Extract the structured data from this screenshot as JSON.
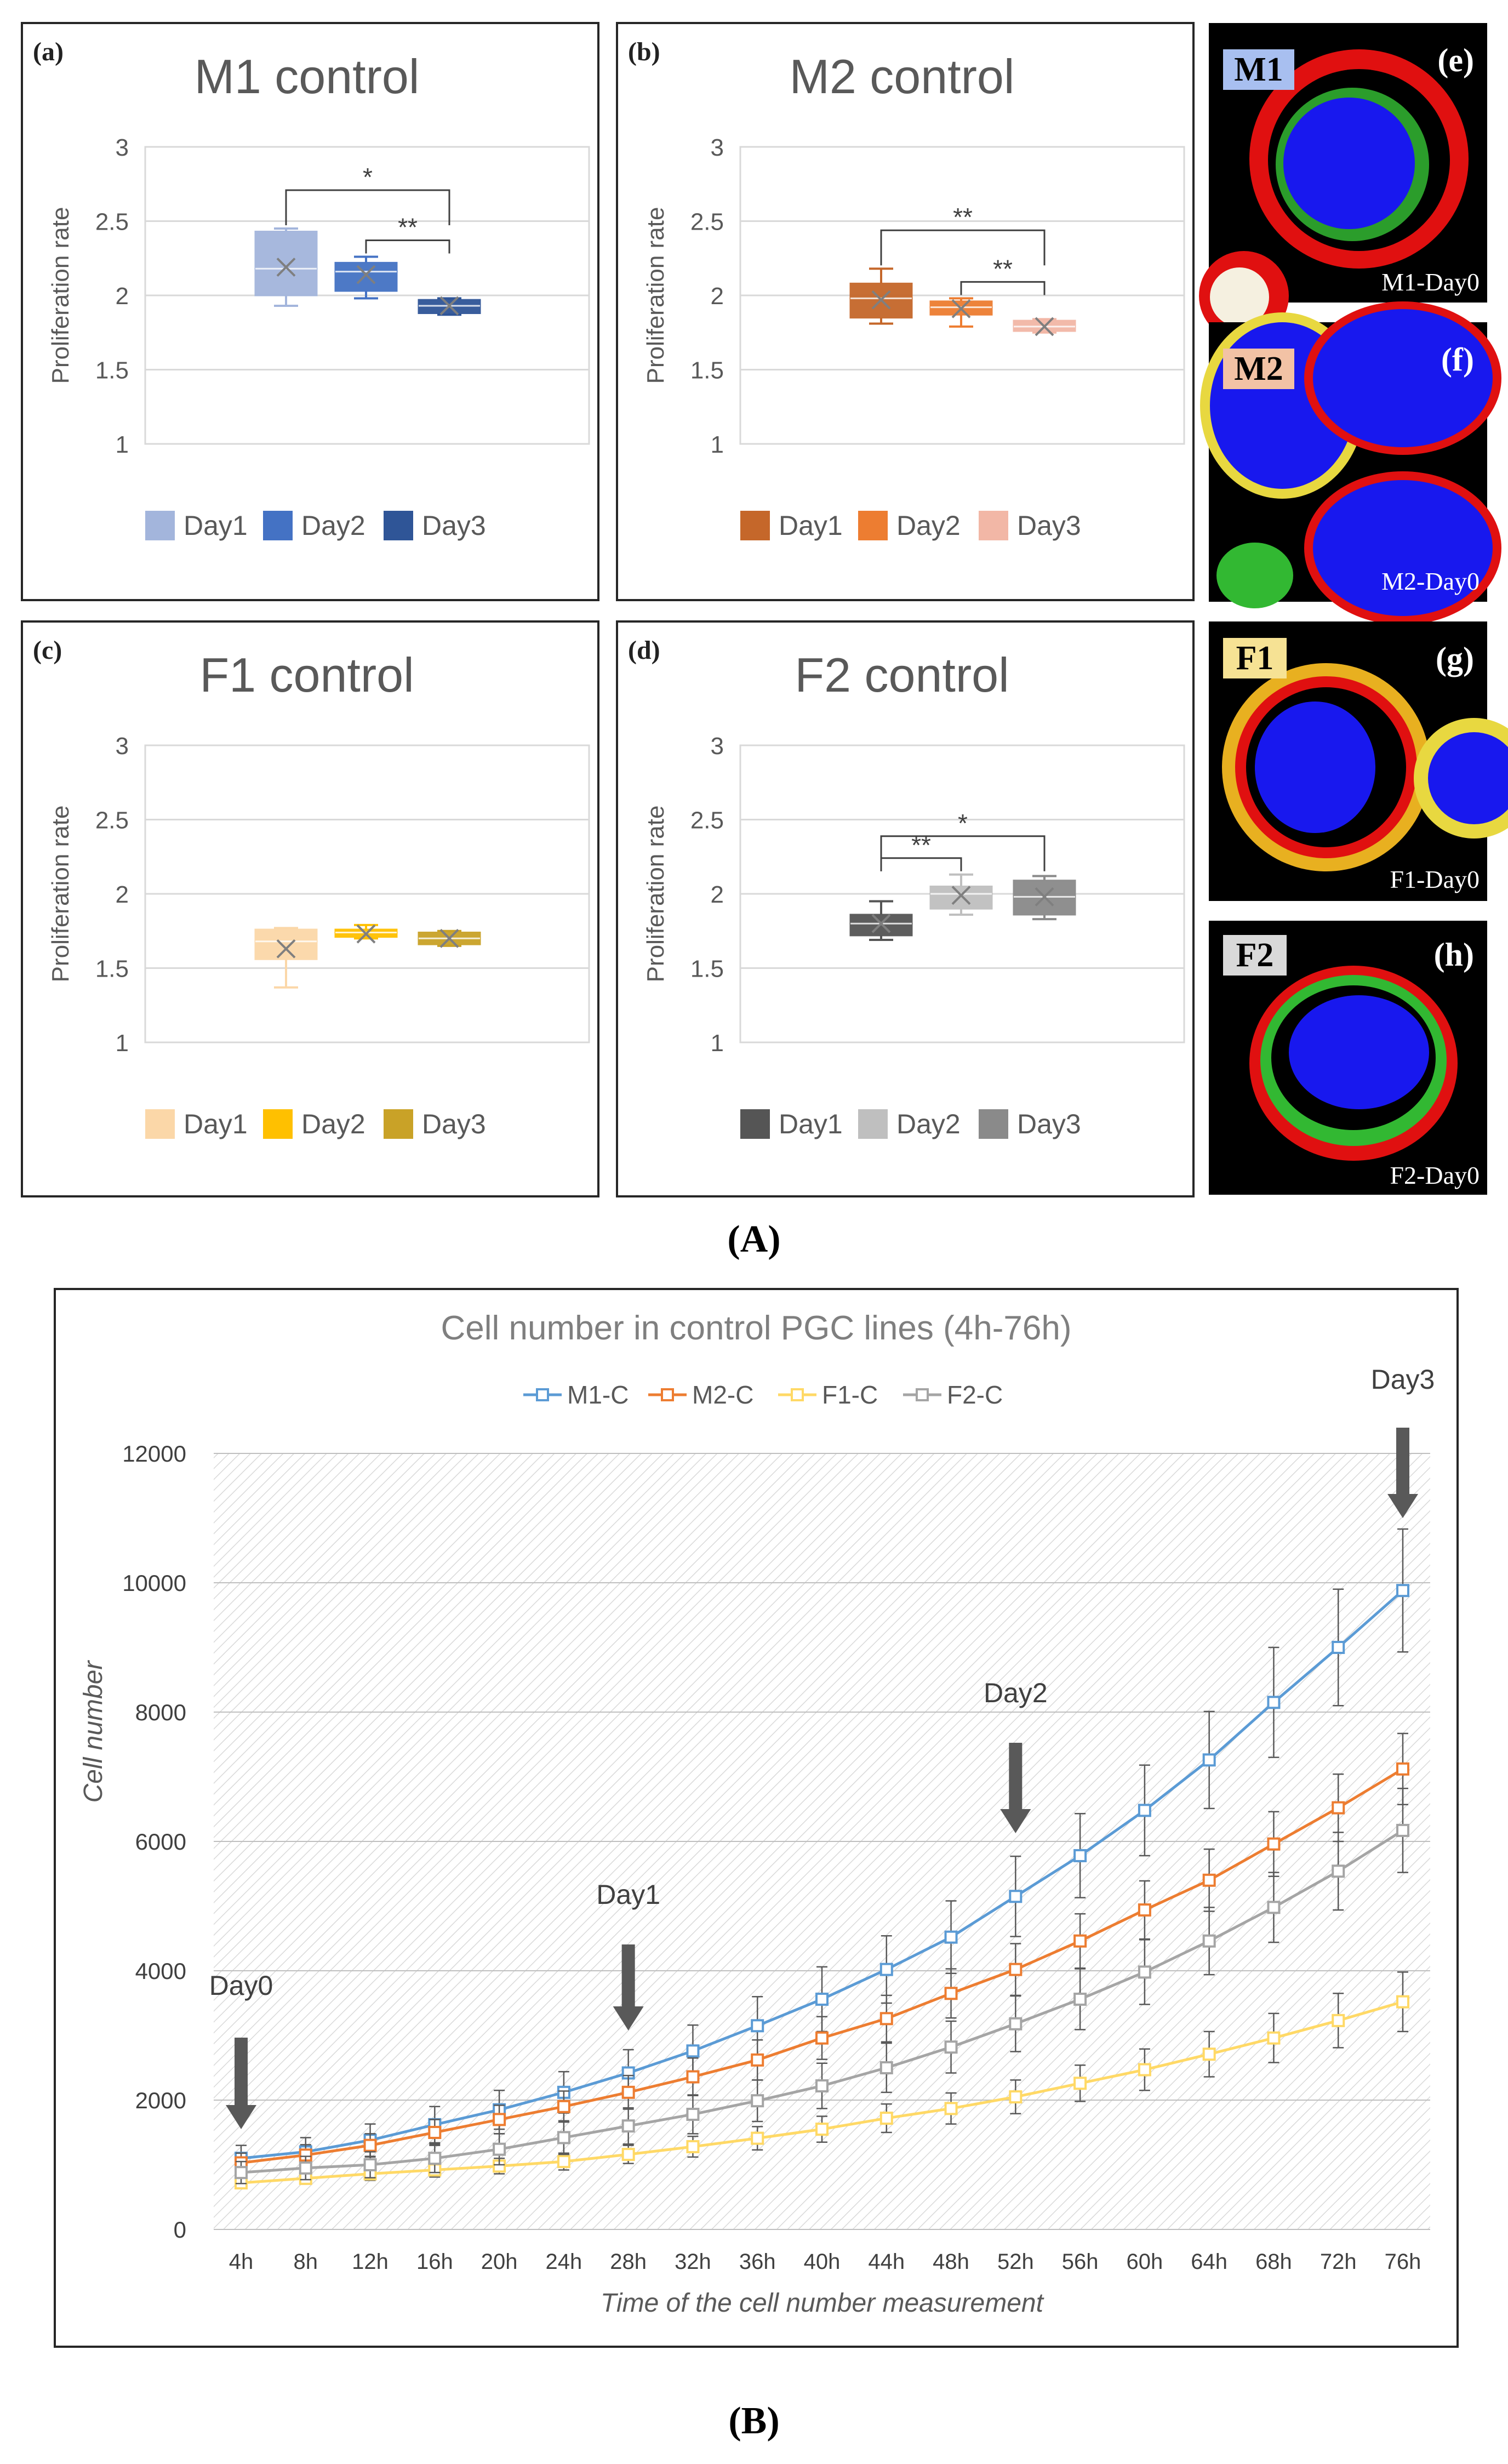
{
  "figure": {
    "part_a_label": "(A)",
    "part_b_label": "(B)"
  },
  "colors": {
    "m1": [
      "#a3b5dc",
      "#4472c4",
      "#2f5597"
    ],
    "m2": [
      "#c5672a",
      "#ed7d31",
      "#f2b7a6"
    ],
    "f1": [
      "#fbd7a8",
      "#ffc000",
      "#c9a227"
    ],
    "f2": [
      "#555555",
      "#bfbfbf",
      "#8a8a8a"
    ],
    "line_m1": "#5b9bd5",
    "line_m2": "#ed7d31",
    "line_f1": "#ffd966",
    "line_f2": "#a5a5a5",
    "arrow": "#595959"
  },
  "micrographs": [
    {
      "tag": "M1",
      "letter": "(e)",
      "caption": "M1-Day0"
    },
    {
      "tag": "M2",
      "letter": "(f)",
      "caption": "M2-Day0"
    },
    {
      "tag": "F1",
      "letter": "(g)",
      "caption": "F1-Day0"
    },
    {
      "tag": "F2",
      "letter": "(h)",
      "caption": "F2-Day0"
    }
  ],
  "chart_data": [
    {
      "type": "box",
      "panel": "(a)",
      "title": "M1 control",
      "ylabel": "Proliferation rate",
      "ylim": [
        1,
        3
      ],
      "yticks": [
        "3",
        "2.5",
        "2",
        "1.5",
        "1"
      ],
      "legend": [
        "Day1",
        "Day2",
        "Day3"
      ],
      "boxes": [
        {
          "name": "Day1",
          "min": 1.93,
          "q1": 2.0,
          "median": 2.18,
          "q3": 2.43,
          "max": 2.45,
          "mean": 2.19
        },
        {
          "name": "Day2",
          "min": 1.98,
          "q1": 2.03,
          "median": 2.16,
          "q3": 2.22,
          "max": 2.26,
          "mean": 2.14
        },
        {
          "name": "Day3",
          "min": 1.87,
          "q1": 1.88,
          "median": 1.93,
          "q3": 1.97,
          "max": 1.98,
          "mean": 1.93
        }
      ],
      "significance": [
        {
          "from": 0,
          "to": 2,
          "label": "*"
        },
        {
          "from": 1,
          "to": 2,
          "label": "**"
        }
      ]
    },
    {
      "type": "box",
      "panel": "(b)",
      "title": "M2 control",
      "ylabel": "Proliferation rate",
      "ylim": [
        1,
        3
      ],
      "yticks": [
        "3",
        "2.5",
        "2",
        "1.5",
        "1"
      ],
      "legend": [
        "Day1",
        "Day2",
        "Day3"
      ],
      "boxes": [
        {
          "name": "Day1",
          "min": 1.81,
          "q1": 1.85,
          "median": 1.98,
          "q3": 2.08,
          "max": 2.18,
          "mean": 1.97
        },
        {
          "name": "Day2",
          "min": 1.79,
          "q1": 1.87,
          "median": 1.92,
          "q3": 1.96,
          "max": 1.98,
          "mean": 1.91
        },
        {
          "name": "Day3",
          "min": 1.75,
          "q1": 1.76,
          "median": 1.79,
          "q3": 1.83,
          "max": 1.84,
          "mean": 1.79
        }
      ],
      "significance": [
        {
          "from": 0,
          "to": 2,
          "label": "**"
        },
        {
          "from": 1,
          "to": 2,
          "label": "**"
        }
      ]
    },
    {
      "type": "box",
      "panel": "(c)",
      "title": "F1 control",
      "ylabel": "Proliferation rate",
      "ylim": [
        1,
        3
      ],
      "yticks": [
        "3",
        "2.5",
        "2",
        "1.5",
        "1"
      ],
      "legend": [
        "Day1",
        "Day2",
        "Day3"
      ],
      "boxes": [
        {
          "name": "Day1",
          "min": 1.37,
          "q1": 1.56,
          "median": 1.68,
          "q3": 1.76,
          "max": 1.77,
          "mean": 1.63
        },
        {
          "name": "Day2",
          "min": 1.7,
          "q1": 1.71,
          "median": 1.74,
          "q3": 1.76,
          "max": 1.79,
          "mean": 1.73
        },
        {
          "name": "Day3",
          "min": 1.65,
          "q1": 1.66,
          "median": 1.7,
          "q3": 1.74,
          "max": 1.75,
          "mean": 1.7
        }
      ],
      "significance": []
    },
    {
      "type": "box",
      "panel": "(d)",
      "title": "F2 control",
      "ylabel": "Proliferation rate",
      "ylim": [
        1,
        3
      ],
      "yticks": [
        "3",
        "2.5",
        "2",
        "1.5",
        "1"
      ],
      "legend": [
        "Day1",
        "Day2",
        "Day3"
      ],
      "boxes": [
        {
          "name": "Day1",
          "min": 1.69,
          "q1": 1.72,
          "median": 1.8,
          "q3": 1.86,
          "max": 1.95,
          "mean": 1.8
        },
        {
          "name": "Day2",
          "min": 1.86,
          "q1": 1.9,
          "median": 2.0,
          "q3": 2.05,
          "max": 2.13,
          "mean": 1.99
        },
        {
          "name": "Day3",
          "min": 1.83,
          "q1": 1.86,
          "median": 1.98,
          "q3": 2.09,
          "max": 2.12,
          "mean": 1.98
        }
      ],
      "significance": [
        {
          "from": 0,
          "to": 1,
          "label": "**"
        },
        {
          "from": 0,
          "to": 2,
          "label": "*"
        }
      ]
    },
    {
      "type": "line",
      "title": "Cell number in control PGC lines (4h-76h)",
      "xlabel": "Time of the cell number measurement",
      "ylabel": "Cell number",
      "ylim": [
        0,
        12000
      ],
      "yticks": [
        "0",
        "2000",
        "4000",
        "6000",
        "8000",
        "10000",
        "12000"
      ],
      "categories": [
        "4h",
        "8h",
        "12h",
        "16h",
        "20h",
        "24h",
        "28h",
        "32h",
        "36h",
        "40h",
        "44h",
        "48h",
        "52h",
        "56h",
        "60h",
        "64h",
        "68h",
        "72h",
        "76h"
      ],
      "series": [
        {
          "name": "M1-C",
          "values": [
            1100,
            1200,
            1380,
            1620,
            1850,
            2120,
            2420,
            2760,
            3150,
            3560,
            4020,
            4520,
            5150,
            5780,
            6480,
            7260,
            8150,
            9000,
            9880
          ],
          "errors": [
            200,
            220,
            250,
            280,
            300,
            320,
            360,
            400,
            450,
            500,
            520,
            560,
            620,
            650,
            700,
            750,
            850,
            900,
            950
          ]
        },
        {
          "name": "M2-C",
          "values": [
            1030,
            1150,
            1300,
            1500,
            1700,
            1900,
            2120,
            2360,
            2620,
            2960,
            3260,
            3650,
            4020,
            4460,
            4940,
            5400,
            5960,
            6520,
            7120
          ],
          "errors": [
            150,
            160,
            180,
            200,
            220,
            240,
            260,
            290,
            310,
            330,
            360,
            380,
            400,
            420,
            450,
            480,
            500,
            520,
            550
          ]
        },
        {
          "name": "F1-C",
          "values": [
            720,
            790,
            860,
            920,
            980,
            1050,
            1160,
            1280,
            1410,
            1550,
            1720,
            1870,
            2050,
            2260,
            2470,
            2710,
            2960,
            3230,
            3520
          ],
          "errors": [
            80,
            90,
            100,
            110,
            120,
            130,
            140,
            160,
            180,
            200,
            220,
            240,
            260,
            280,
            320,
            350,
            380,
            420,
            460
          ]
        },
        {
          "name": "F2-C",
          "values": [
            880,
            950,
            1000,
            1100,
            1240,
            1420,
            1600,
            1780,
            1990,
            2220,
            2500,
            2820,
            3180,
            3560,
            3980,
            4460,
            4980,
            5540,
            6170
          ],
          "errors": [
            170,
            180,
            200,
            220,
            240,
            260,
            280,
            300,
            320,
            350,
            380,
            400,
            430,
            470,
            500,
            520,
            540,
            600,
            650
          ]
        }
      ],
      "annotations": [
        {
          "label": "Day0",
          "index": 0
        },
        {
          "label": "Day1",
          "index": 6
        },
        {
          "label": "Day2",
          "index": 12
        },
        {
          "label": "Day3",
          "index": 18
        }
      ]
    }
  ]
}
